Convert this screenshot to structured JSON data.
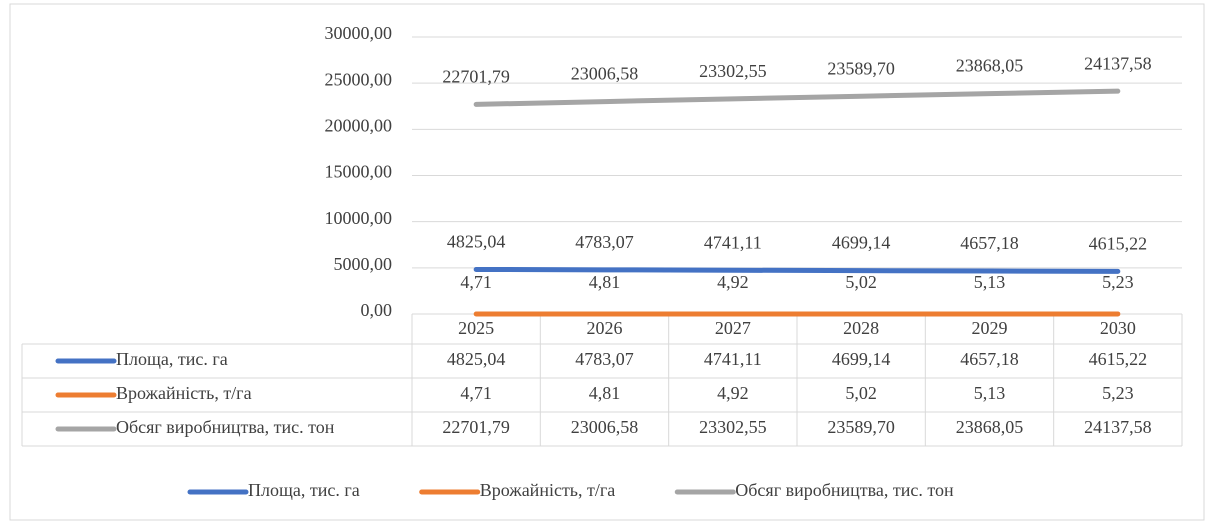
{
  "chart_data": {
    "type": "line",
    "categories": [
      "2025",
      "2026",
      "2027",
      "2028",
      "2029",
      "2030"
    ],
    "series": [
      {
        "name": "Площа, тис. га",
        "color": "#4472c4",
        "values": [
          4825.04,
          4783.07,
          4741.11,
          4699.14,
          4657.18,
          4615.22
        ],
        "value_labels": [
          "4825,04",
          "4783,07",
          "4741,11",
          "4699,14",
          "4657,18",
          "4615,22"
        ]
      },
      {
        "name": "Врожайність, т/га",
        "color": "#ed7d31",
        "values": [
          4.71,
          4.81,
          4.92,
          5.02,
          5.13,
          5.23
        ],
        "value_labels": [
          "4,71",
          "4,81",
          "4,92",
          "5,02",
          "5,13",
          "5,23"
        ]
      },
      {
        "name": "Обсяг виробництва, тис. тон",
        "color": "#a5a5a5",
        "values": [
          22701.79,
          23006.58,
          23302.55,
          23589.7,
          23868.05,
          24137.58
        ],
        "value_labels": [
          "22701,79",
          "23006,58",
          "23302,55",
          "23589,70",
          "23868,05",
          "24137,58"
        ]
      }
    ],
    "ylim": [
      0,
      30000
    ],
    "yticks": [
      {
        "value": 0,
        "label": "0,00"
      },
      {
        "value": 5000,
        "label": "5000,00"
      },
      {
        "value": 10000,
        "label": "10000,00"
      },
      {
        "value": 15000,
        "label": "15000,00"
      },
      {
        "value": 20000,
        "label": "20000,00"
      },
      {
        "value": 25000,
        "label": "25000,00"
      },
      {
        "value": 30000,
        "label": "30000,00"
      }
    ],
    "grid": true,
    "legend": "bottom",
    "data_table": true
  }
}
